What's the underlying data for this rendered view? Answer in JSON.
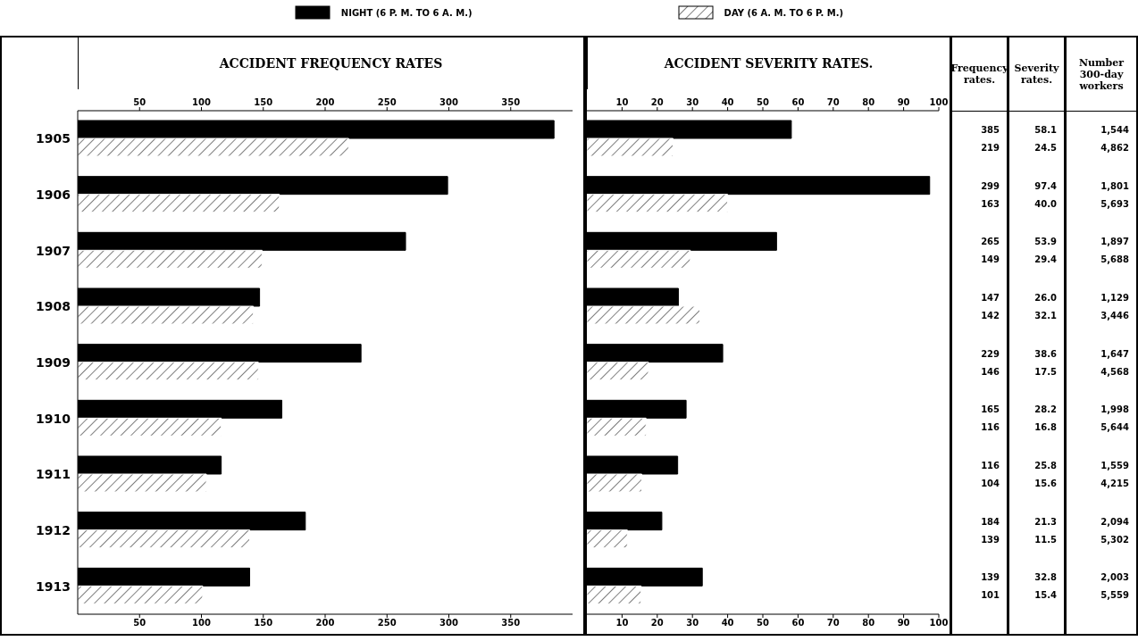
{
  "chart_data": [
    {
      "type": "bar",
      "orientation": "horizontal",
      "title": "ACCIDENT FREQUENCY RATES",
      "categories": [
        "1905",
        "1906",
        "1907",
        "1908",
        "1909",
        "1910",
        "1911",
        "1912",
        "1913"
      ],
      "series": [
        {
          "name": "NIGHT (6 P. M. TO 6 A. M.)",
          "color": "#000000",
          "values": [
            385,
            299,
            265,
            147,
            229,
            165,
            116,
            184,
            139
          ]
        },
        {
          "name": "DAY (6 A. M. TO 6 P. M.)",
          "color": "#ffffff",
          "values": [
            219,
            163,
            149,
            142,
            146,
            116,
            104,
            139,
            101
          ]
        }
      ],
      "xlim": [
        0,
        400
      ],
      "xticks": [
        50,
        100,
        150,
        200,
        250,
        300,
        350
      ],
      "x2lim": [
        0,
        400
      ],
      "x2ticks": [
        50,
        100,
        150,
        200,
        250,
        300,
        350
      ],
      "legend": "top"
    },
    {
      "type": "bar",
      "orientation": "horizontal",
      "title": "ACCIDENT SEVERITY RATES.",
      "categories": [
        "1905",
        "1906",
        "1907",
        "1908",
        "1909",
        "1910",
        "1911",
        "1912",
        "1913"
      ],
      "series": [
        {
          "color": "#000000",
          "values": [
            58.1,
            97.4,
            53.9,
            26.0,
            38.6,
            28.2,
            25.8,
            21.3,
            32.8
          ]
        },
        {
          "color": "#ffffff",
          "values": [
            24.5,
            40.0,
            29.4,
            32.1,
            17.5,
            16.8,
            15.6,
            11.5,
            15.4
          ]
        }
      ],
      "xlim": [
        0,
        100
      ],
      "xticks": [
        10,
        20,
        30,
        40,
        50,
        60,
        70,
        80,
        90,
        100
      ],
      "x2lim": [
        0,
        100
      ],
      "x2ticks": [
        10,
        20,
        30,
        40,
        50,
        60,
        70,
        80,
        90,
        100
      ],
      "tick_labels": "x"
    },
    {
      "type": "other",
      "annotations": [
        "Frequency rates.",
        "Severity rates.",
        "Number 300-day workers",
        "385",
        "58.1",
        "1,544",
        "219",
        "24.5",
        "4,862",
        "299",
        "97.4",
        "1,801",
        "163",
        "40.0",
        "5,693",
        "265",
        "53.9",
        "1,897",
        "149",
        "29.4",
        "5,688",
        "147",
        "26.0",
        "1,129",
        "142",
        "32.1",
        "3,446",
        "229",
        "38.6",
        "1,647",
        "146",
        "17.5",
        "4,568",
        "165",
        "28.2",
        "1,998",
        "116",
        "16.8",
        "5,644",
        "116",
        "25.8",
        "1,559",
        "104",
        "15.6",
        "4,215",
        "184",
        "21.3",
        "2,094",
        "139",
        "11.5",
        "5,302",
        "139",
        "32.8",
        "2,003",
        "101",
        "15.4",
        "5,559"
      ]
    }
  ]
}
